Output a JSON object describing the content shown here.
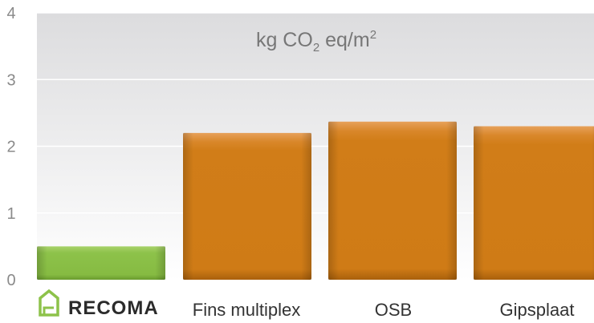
{
  "chart_data": {
    "type": "bar",
    "categories": [
      "RECOMA",
      "Fins multiplex",
      "OSB",
      "Gipsplaat"
    ],
    "values": [
      0.5,
      2.2,
      2.37,
      2.3
    ],
    "bar_colors": [
      "#8dc24a",
      "#d17d18",
      "#d17d18",
      "#d17d18"
    ],
    "unit": {
      "main": "kg CO",
      "sub": "2",
      "mid": " eq/m",
      "sup": "2"
    },
    "yticks": [
      "0",
      "1",
      "2",
      "3",
      "4"
    ],
    "ylim": [
      0,
      4
    ],
    "grid": true,
    "logo_icon": "house-icon"
  }
}
